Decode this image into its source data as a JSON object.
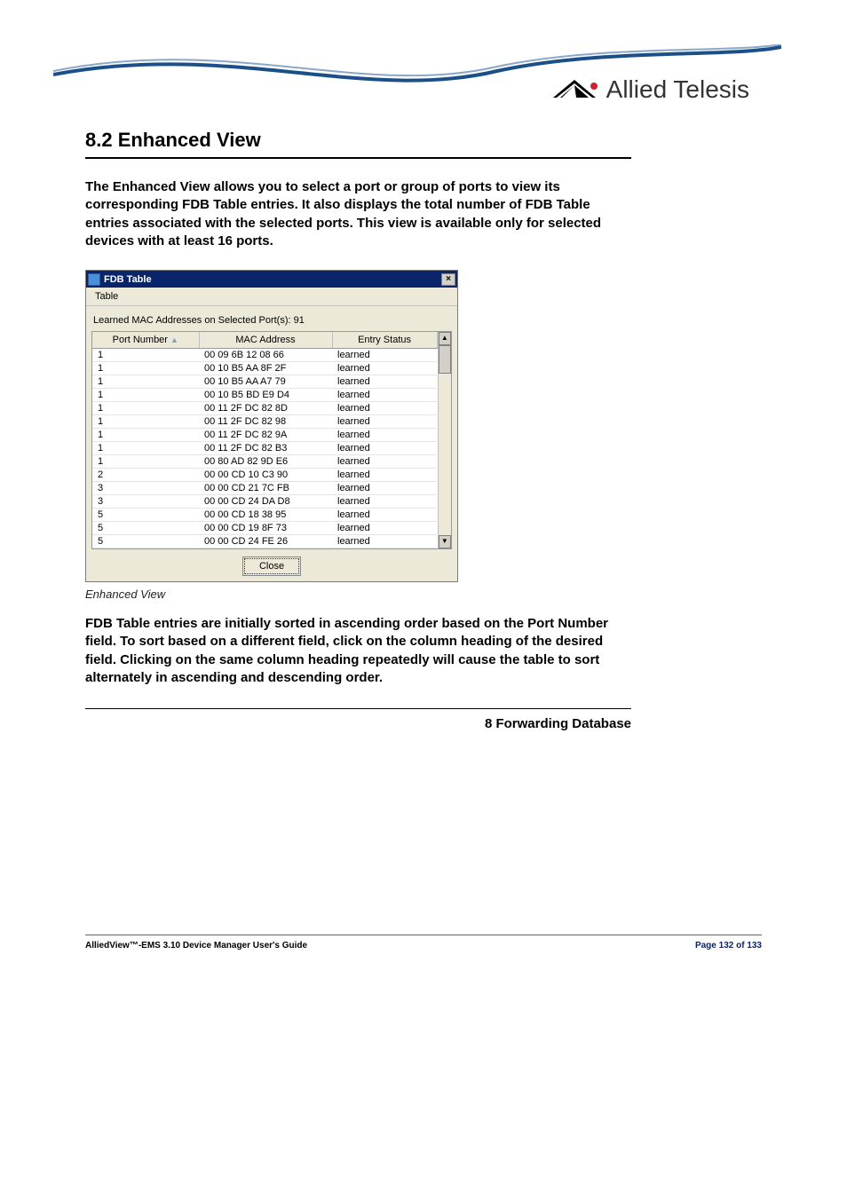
{
  "brand": {
    "name": "Allied Telesis",
    "swoosh_stroke_top": "#8aa8c8",
    "swoosh_stroke_bottom": "#1b4f8a",
    "logo_tri_fill": "#000000",
    "logo_dot_fill": "#d02030"
  },
  "section": {
    "title": "8.2 Enhanced View",
    "para1": "The Enhanced View allows you to select a port or group of ports to view its corresponding FDB Table entries. It also displays the total number of FDB Table entries associated with the selected ports. This view is available only for selected devices with at least 16 ports.",
    "caption": "Enhanced View",
    "para2": "FDB Table entries are initially sorted in ascending order based on the Port Number field. To sort based on a different field, click on the column heading of the desired field. Clicking on the same column heading repeatedly will cause the table to sort alternately in ascending and descending order.",
    "chapter_ref": "8 Forwarding Database"
  },
  "window": {
    "title": "FDB Table",
    "close_glyph": "×",
    "menu": {
      "table": "Table"
    },
    "learned_label": "Learned MAC Addresses on Selected Port(s): 91",
    "columns": {
      "port": "Port Number",
      "mac": "MAC Address",
      "status": "Entry Status"
    },
    "rows": [
      {
        "port": "1",
        "mac": "00 09 6B 12 08 66",
        "status": "learned"
      },
      {
        "port": "1",
        "mac": "00 10 B5 AA 8F 2F",
        "status": "learned"
      },
      {
        "port": "1",
        "mac": "00 10 B5 AA A7 79",
        "status": "learned"
      },
      {
        "port": "1",
        "mac": "00 10 B5 BD E9 D4",
        "status": "learned"
      },
      {
        "port": "1",
        "mac": "00 11 2F DC 82 8D",
        "status": "learned"
      },
      {
        "port": "1",
        "mac": "00 11 2F DC 82 98",
        "status": "learned"
      },
      {
        "port": "1",
        "mac": "00 11 2F DC 82 9A",
        "status": "learned"
      },
      {
        "port": "1",
        "mac": "00 11 2F DC 82 B3",
        "status": "learned"
      },
      {
        "port": "1",
        "mac": "00 80 AD 82 9D E6",
        "status": "learned"
      },
      {
        "port": "2",
        "mac": "00 00 CD 10 C3 90",
        "status": "learned"
      },
      {
        "port": "3",
        "mac": "00 00 CD 21 7C FB",
        "status": "learned"
      },
      {
        "port": "3",
        "mac": "00 00 CD 24 DA D8",
        "status": "learned"
      },
      {
        "port": "5",
        "mac": "00 00 CD 18 38 95",
        "status": "learned"
      },
      {
        "port": "5",
        "mac": "00 00 CD 19 8F 73",
        "status": "learned"
      },
      {
        "port": "5",
        "mac": "00 00 CD 24 FE 26",
        "status": "learned"
      }
    ],
    "close_button": "Close",
    "scroll_up": "▲",
    "scroll_down": "▼"
  },
  "footer": {
    "left": "AlliedView™-EMS 3.10 Device Manager User's Guide",
    "right": "Page 132 of 133"
  }
}
